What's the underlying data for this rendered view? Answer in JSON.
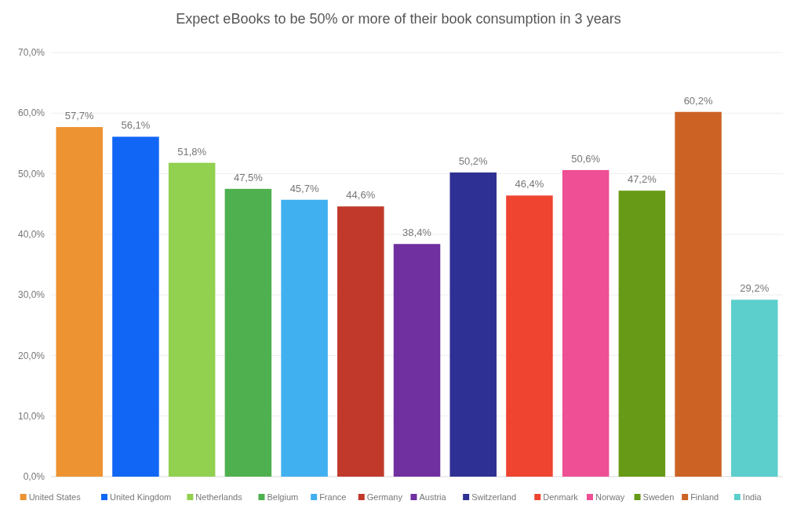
{
  "chart_data": {
    "type": "bar",
    "title": "Expect eBooks to be 50% or more of their book consumption in 3 years",
    "categories": [
      null
    ],
    "series": [
      {
        "name": "United States",
        "color": "#ed9332",
        "values": [
          57.7
        ],
        "value_labels": [
          "57,7%"
        ]
      },
      {
        "name": "United Kingdom",
        "color": "#1166f5",
        "values": [
          56.1
        ],
        "value_labels": [
          "56,1%"
        ]
      },
      {
        "name": "Netherlands",
        "color": "#92d050",
        "values": [
          51.8
        ],
        "value_labels": [
          "51,8%"
        ]
      },
      {
        "name": "Belgium",
        "color": "#4fb04f",
        "values": [
          47.5
        ],
        "value_labels": [
          "47,5%"
        ]
      },
      {
        "name": "France",
        "color": "#41b0f0",
        "values": [
          45.7
        ],
        "value_labels": [
          "45,7%"
        ]
      },
      {
        "name": "Germany",
        "color": "#c0392b",
        "values": [
          44.6
        ],
        "value_labels": [
          "44,6%"
        ]
      },
      {
        "name": "Austria",
        "color": "#7030a0",
        "values": [
          38.4
        ],
        "value_labels": [
          "38,4%"
        ]
      },
      {
        "name": "Switzerland",
        "color": "#2f3093",
        "values": [
          50.2
        ],
        "value_labels": [
          "50,2%"
        ]
      },
      {
        "name": "Denmark",
        "color": "#ee4430",
        "values": [
          46.4
        ],
        "value_labels": [
          "46,4%"
        ]
      },
      {
        "name": "Norway",
        "color": "#ee4f95",
        "values": [
          50.6
        ],
        "value_labels": [
          "50,6%"
        ]
      },
      {
        "name": "Sweden",
        "color": "#679a17",
        "values": [
          47.2
        ],
        "value_labels": [
          "47,2%"
        ]
      },
      {
        "name": "Finland",
        "color": "#cc6325",
        "values": [
          60.2
        ],
        "value_labels": [
          "60,2%"
        ]
      },
      {
        "name": "India",
        "color": "#5ccfcc",
        "values": [
          29.2
        ],
        "value_labels": [
          "29,2%"
        ]
      }
    ],
    "ylim": [
      0,
      70
    ],
    "yticks": [
      {
        "value": 0,
        "label": "0,0%"
      },
      {
        "value": 10,
        "label": "10,0%"
      },
      {
        "value": 20,
        "label": "20,0%"
      },
      {
        "value": 30,
        "label": "30,0%"
      },
      {
        "value": 40,
        "label": "40,0%"
      },
      {
        "value": 50,
        "label": "50,0%"
      },
      {
        "value": 60,
        "label": "60,0%"
      },
      {
        "value": 70,
        "label": "70,0%"
      }
    ],
    "grid": "y",
    "legend": "bottom",
    "tick_labels": "y"
  }
}
